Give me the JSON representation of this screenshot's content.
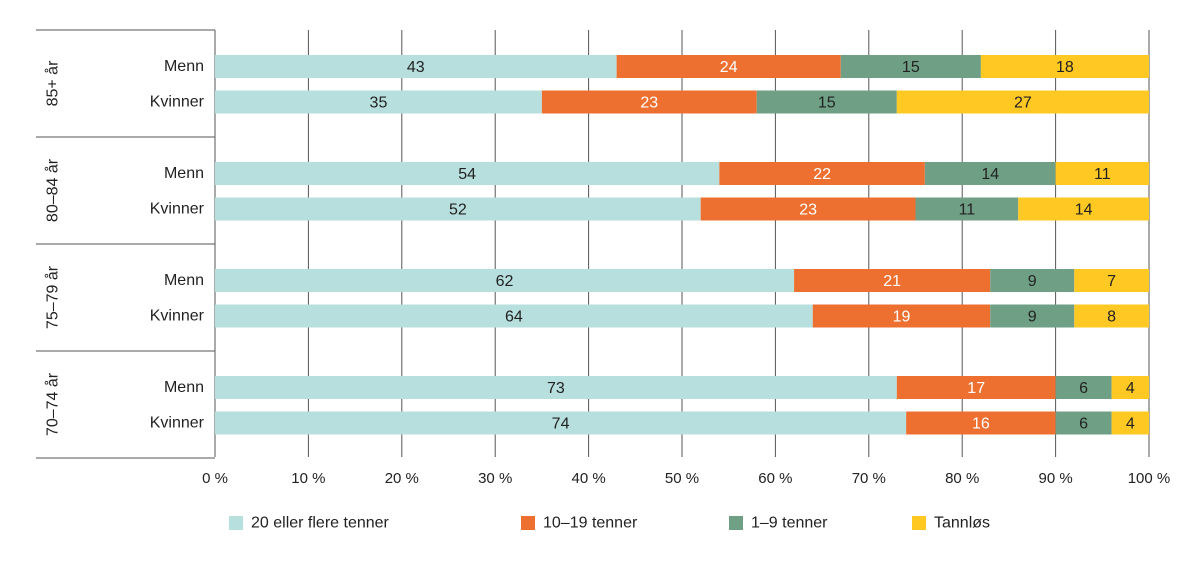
{
  "chart_data": {
    "type": "bar",
    "orientation": "horizontal",
    "stacked": true,
    "title": "",
    "xlabel": "",
    "ylabel": "",
    "xlim": [
      0,
      100
    ],
    "x_ticks": [
      "0 %",
      "10 %",
      "20 %",
      "30 %",
      "40 %",
      "50 %",
      "60 %",
      "70 %",
      "80 %",
      "90 %",
      "100 %"
    ],
    "grid": "vertical",
    "legend_position": "bottom",
    "groups": [
      {
        "label": "85+ år",
        "rows": [
          {
            "label": "Menn",
            "values": [
              43,
              24,
              15,
              18
            ]
          },
          {
            "label": "Kvinner",
            "values": [
              35,
              23,
              15,
              27
            ]
          }
        ]
      },
      {
        "label": "80–84 år",
        "rows": [
          {
            "label": "Menn",
            "values": [
              54,
              22,
              14,
              11
            ]
          },
          {
            "label": "Kvinner",
            "values": [
              52,
              23,
              11,
              14
            ]
          }
        ]
      },
      {
        "label": "75–79 år",
        "rows": [
          {
            "label": "Menn",
            "values": [
              62,
              21,
              9,
              7
            ]
          },
          {
            "label": "Kvinner",
            "values": [
              64,
              19,
              9,
              8
            ]
          }
        ]
      },
      {
        "label": "70–74 år",
        "rows": [
          {
            "label": "Menn",
            "values": [
              73,
              17,
              6,
              4
            ]
          },
          {
            "label": "Kvinner",
            "values": [
              74,
              16,
              6,
              4
            ]
          }
        ]
      }
    ],
    "series": [
      {
        "name": "20 eller flere tenner",
        "color": "#b7dfdd",
        "label_color": "#222222"
      },
      {
        "name": "10–19 tenner",
        "color": "#ee7030",
        "label_color": "#ffffff"
      },
      {
        "name": "1–9 tenner",
        "color": "#6f9f84",
        "label_color": "#222222"
      },
      {
        "name": "Tannløs",
        "color": "#ffc822",
        "label_color": "#222222"
      }
    ]
  }
}
